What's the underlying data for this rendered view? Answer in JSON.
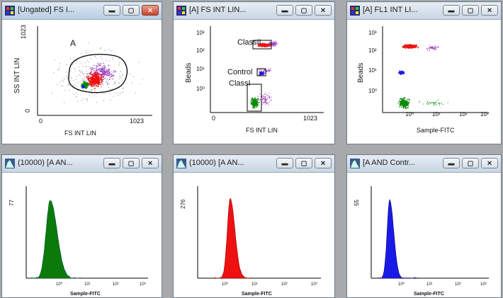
{
  "windows": [
    {
      "title": "[Ungated] FS I...",
      "active": true
    },
    {
      "title": "[A] FS INT LIN...",
      "active": false
    },
    {
      "title": "[A] FL1 INT LI...",
      "active": false
    },
    {
      "title": "(10000) [A AN...",
      "active": false
    },
    {
      "title": "(10000) [A AN...",
      "active": false
    },
    {
      "title": "[A AND Contr...",
      "active": false
    }
  ],
  "plot1": {
    "ylabel": "SS INT LIN",
    "xlabel": "FS INT LIN",
    "y_top": "1023",
    "y_zero": "0",
    "x_zero": "0",
    "x_max": "1023",
    "gate_label": "A"
  },
  "plot2": {
    "ylabel": "Beads",
    "xlabel": "FS INT LIN",
    "yticks": [
      "10³",
      "10²",
      "10¹",
      "10⁰"
    ],
    "x_zero": "0",
    "x_max": "1023",
    "region_classII": "ClassII",
    "region_control": "Control",
    "region_classI": "ClassI"
  },
  "plot3": {
    "ylabel": "Beads",
    "xlabel": "Sample-FITC",
    "yticks": [
      "10³",
      "10²",
      "10¹",
      "10⁰"
    ],
    "xticks": [
      "10⁰",
      "10¹",
      "10²",
      "10³"
    ]
  },
  "hist1": {
    "ymax": "77",
    "xlabel": "Sample-FITC",
    "xticks": [
      "10⁰",
      "10¹",
      "10²",
      "10³"
    ],
    "color": "#0b7a0b"
  },
  "hist2": {
    "ymax": "276",
    "xlabel": "Sample-FITC",
    "xticks": [
      "10⁰",
      "10¹",
      "10²",
      "10³"
    ],
    "color": "#ee1111"
  },
  "hist3": {
    "ymax": "55",
    "xlabel": "Sample-FITC",
    "xticks": [
      "10⁰",
      "10¹",
      "10²",
      "10³"
    ],
    "color": "#1a1ae8"
  }
}
